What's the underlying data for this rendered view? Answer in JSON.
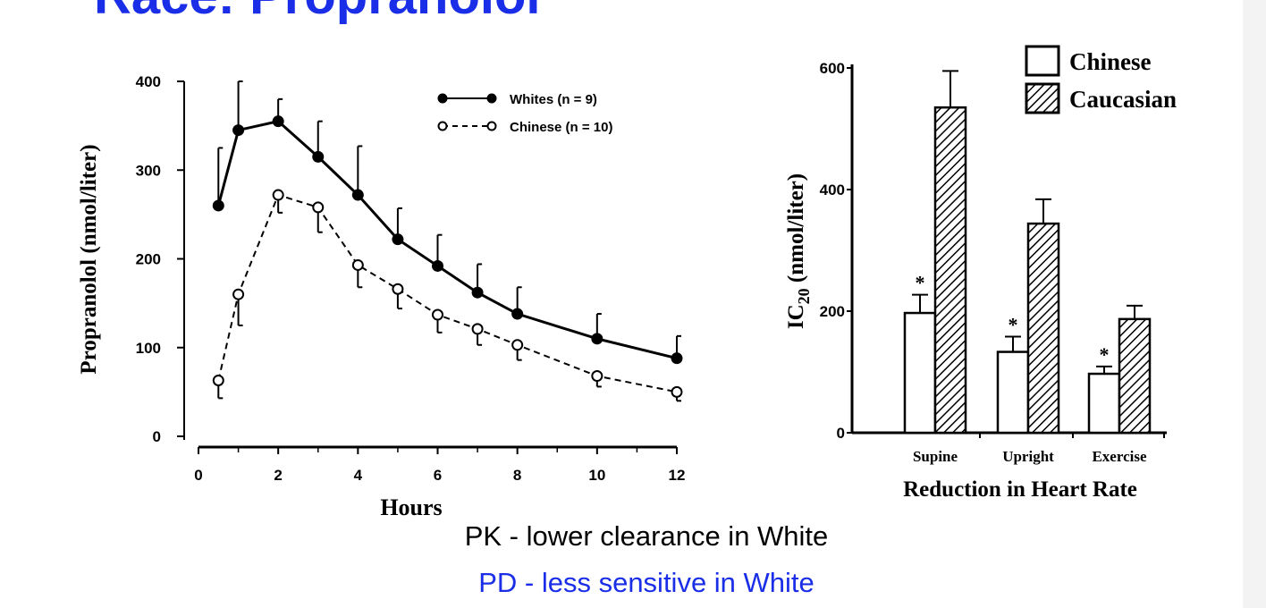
{
  "slide": {
    "title": "Race: Propranolol",
    "caption_1": "PK - lower clearance in White",
    "caption_2": "PD - less sensitive in White"
  },
  "colors": {
    "title": "#1a2ee8",
    "caption_2": "#1a2ee8",
    "ink": "#000000"
  },
  "chart_data": [
    {
      "type": "line",
      "xlabel": "Hours",
      "ylabel": "Propranolol (nmol/liter)",
      "xlim": [
        0,
        12
      ],
      "ylim": [
        0,
        400
      ],
      "x_ticks": [
        0,
        2,
        4,
        6,
        8,
        10,
        12
      ],
      "y_ticks": [
        0,
        100,
        200,
        300,
        400
      ],
      "legend_position": "top-right",
      "series": [
        {
          "name": "Whites (n = 9)",
          "marker": "filled-circle",
          "line": "solid",
          "x": [
            0.5,
            1,
            2,
            3,
            4,
            5,
            6,
            7,
            8,
            10,
            12
          ],
          "y": [
            260,
            345,
            355,
            315,
            272,
            222,
            192,
            162,
            138,
            110,
            88
          ],
          "error": [
            65,
            55,
            25,
            40,
            55,
            35,
            35,
            32,
            30,
            28,
            25
          ]
        },
        {
          "name": "Chinese (n = 10)",
          "marker": "open-circle",
          "line": "dashed",
          "x": [
            0.5,
            1,
            2,
            3,
            4,
            5,
            6,
            7,
            8,
            10,
            12
          ],
          "y": [
            63,
            160,
            272,
            258,
            193,
            166,
            137,
            121,
            103,
            68,
            50
          ],
          "error": [
            20,
            35,
            20,
            28,
            25,
            22,
            20,
            18,
            17,
            12,
            10
          ]
        }
      ]
    },
    {
      "type": "bar",
      "xlabel": "Reduction in Heart Rate",
      "ylabel": "IC20 (nmol/liter)",
      "ylim": [
        0,
        600
      ],
      "y_ticks": [
        0,
        200,
        400,
        600
      ],
      "categories": [
        "Supine",
        "Upright",
        "Exercise"
      ],
      "legend_position": "top-right",
      "series": [
        {
          "name": "Chinese",
          "fill": "open",
          "values": [
            197,
            133,
            97
          ],
          "error": [
            30,
            25,
            12
          ],
          "significant": [
            true,
            true,
            true
          ]
        },
        {
          "name": "Caucasian",
          "fill": "hatched",
          "values": [
            535,
            344,
            187
          ],
          "error": [
            60,
            40,
            22
          ]
        }
      ]
    }
  ]
}
